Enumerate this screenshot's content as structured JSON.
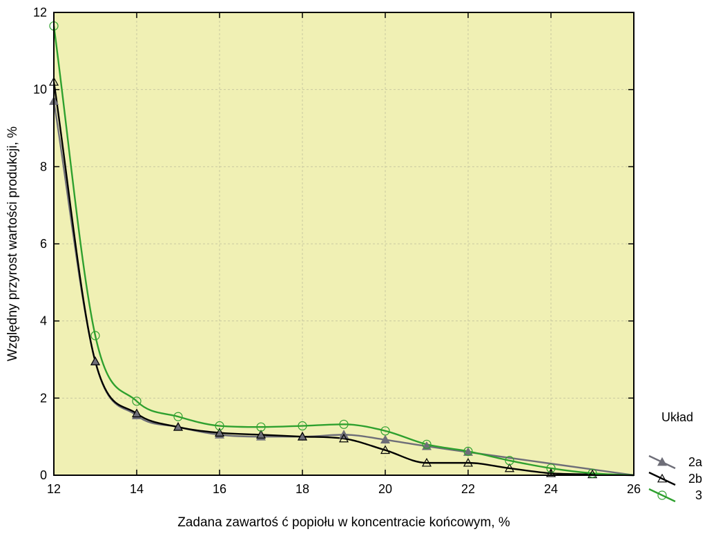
{
  "chart_data": {
    "type": "line",
    "title": "",
    "xlabel": "Zadana zawartoś ć popiołu w koncentracie końcowym,  %",
    "ylabel": "Względny przyrost wartości produkcji,  %",
    "xlim": [
      12,
      26
    ],
    "ylim": [
      0,
      12
    ],
    "xticks": [
      12,
      14,
      16,
      18,
      20,
      22,
      24,
      26
    ],
    "yticks": [
      0,
      2,
      4,
      6,
      8,
      10,
      12
    ],
    "grid": true,
    "background_color": "#f0f0b4",
    "legend": {
      "title": "Układ",
      "placement": "right"
    },
    "series": [
      {
        "name": "2a",
        "marker": "filled-triangle",
        "color": "#6e6e78",
        "x": [
          12,
          13,
          14,
          15,
          16,
          17,
          18,
          19,
          20,
          21,
          22
        ],
        "y": [
          9.7,
          2.95,
          1.55,
          1.25,
          1.05,
          1.0,
          1.0,
          1.05,
          0.92,
          0.75,
          0.6
        ]
      },
      {
        "name": "2b",
        "marker": "open-triangle",
        "color": "#000000",
        "x": [
          12,
          13,
          14,
          15,
          16,
          17,
          18,
          19,
          20,
          21,
          22,
          23,
          24,
          25
        ],
        "y": [
          10.2,
          2.95,
          1.6,
          1.25,
          1.1,
          1.05,
          1.0,
          0.95,
          0.65,
          0.32,
          0.32,
          0.18,
          0.05,
          0.02
        ]
      },
      {
        "name": "3",
        "marker": "open-circle",
        "color": "#2ea02e",
        "x": [
          12,
          13,
          14,
          15,
          16,
          17,
          18,
          19,
          20,
          21,
          22,
          23,
          24,
          25
        ],
        "y": [
          11.65,
          3.62,
          1.92,
          1.52,
          1.28,
          1.25,
          1.28,
          1.32,
          1.15,
          0.8,
          0.62,
          0.38,
          0.18,
          0.05
        ]
      }
    ]
  }
}
